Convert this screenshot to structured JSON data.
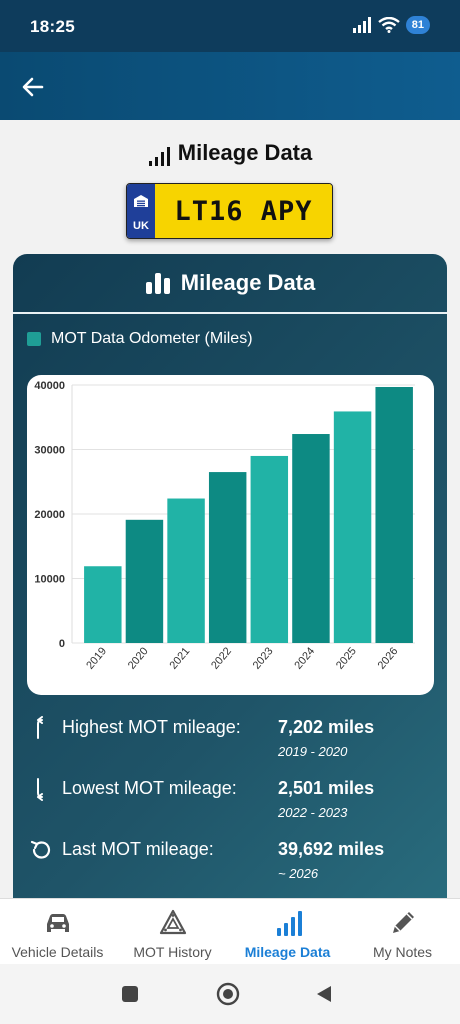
{
  "status_bar": {
    "time": "18:25",
    "battery": "81"
  },
  "page": {
    "heading": "Mileage Data"
  },
  "plate": {
    "registration": "LT16 APY",
    "country": "UK"
  },
  "card": {
    "title": "Mileage Data",
    "legend_label": "MOT Data Odometer (Miles)"
  },
  "chart_data": {
    "type": "bar",
    "categories": [
      "2019",
      "2020",
      "2021",
      "2022",
      "2023",
      "2024",
      "2025",
      "2026"
    ],
    "series": [
      {
        "name": "MOT Data Odometer (Miles)",
        "values": [
          11900,
          19100,
          22400,
          26500,
          29000,
          32400,
          35900,
          39692
        ]
      }
    ],
    "ylim": [
      0,
      40000
    ],
    "yticks": [
      "0",
      "10000",
      "20000",
      "30000",
      "40000"
    ],
    "colors": [
      "#21b3a6",
      "#0d8a83"
    ],
    "grid": true,
    "legend": "top-left"
  },
  "stats": [
    {
      "icon": "arrow-up-icon",
      "label": "Highest MOT mileage:",
      "value": "7,202 miles",
      "range": "2019 - 2020"
    },
    {
      "icon": "arrow-down-icon",
      "label": "Lowest MOT mileage:",
      "value": "2,501 miles",
      "range": "2022 - 2023"
    },
    {
      "icon": "history-icon",
      "label": "Last MOT mileage:",
      "value": "39,692 miles",
      "range": "~ 2026"
    }
  ],
  "nav": [
    {
      "label": "Vehicle Details",
      "icon": "car-icon"
    },
    {
      "label": "MOT History",
      "icon": "mot-triangle-icon"
    },
    {
      "label": "Mileage Data",
      "icon": "signal-bars-icon"
    },
    {
      "label": "My Notes",
      "icon": "pencil-icon"
    }
  ],
  "colors": {
    "accent": "#1b7fd6",
    "plate_yellow": "#f7d400",
    "app_bar": "#0f5d8f"
  }
}
